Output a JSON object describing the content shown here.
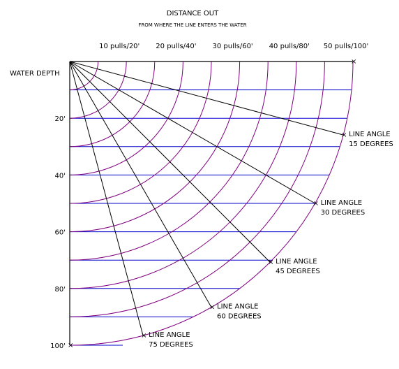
{
  "title": "DISTANCE OUT",
  "subtitle": "FROM WHERE THE LINE ENTERS THE WATER",
  "y_axis_label": "WATER DEPTH",
  "depth_ticks": [
    "20'",
    "40'",
    "60'",
    "80'",
    "100'"
  ],
  "distance_ticks": [
    "10 pulls/20'",
    "20 pulls/40'",
    "30 pulls/60'",
    "40 pulls/80'",
    "50 pulls/100'"
  ],
  "angle_lines": [
    {
      "angle_deg": 15,
      "line1": "LINE ANGLE",
      "line2": "15 DEGREES"
    },
    {
      "angle_deg": 30,
      "line1": "LINE ANGLE",
      "line2": "30 DEGREES"
    },
    {
      "angle_deg": 45,
      "line1": "LINE ANGLE",
      "line2": "45 DEGREES"
    },
    {
      "angle_deg": 60,
      "line1": "LINE ANGLE",
      "line2": "60 DEGREES"
    },
    {
      "angle_deg": 75,
      "line1": "LINE ANGLE",
      "line2": "75 DEGREES"
    }
  ],
  "grid": {
    "max_distance": 100,
    "arc_step": 10,
    "depth_step": 10
  },
  "colors": {
    "arc": "#800080",
    "depth_line": "#0000cc",
    "angle_line": "#000000",
    "axis": "#000000"
  }
}
